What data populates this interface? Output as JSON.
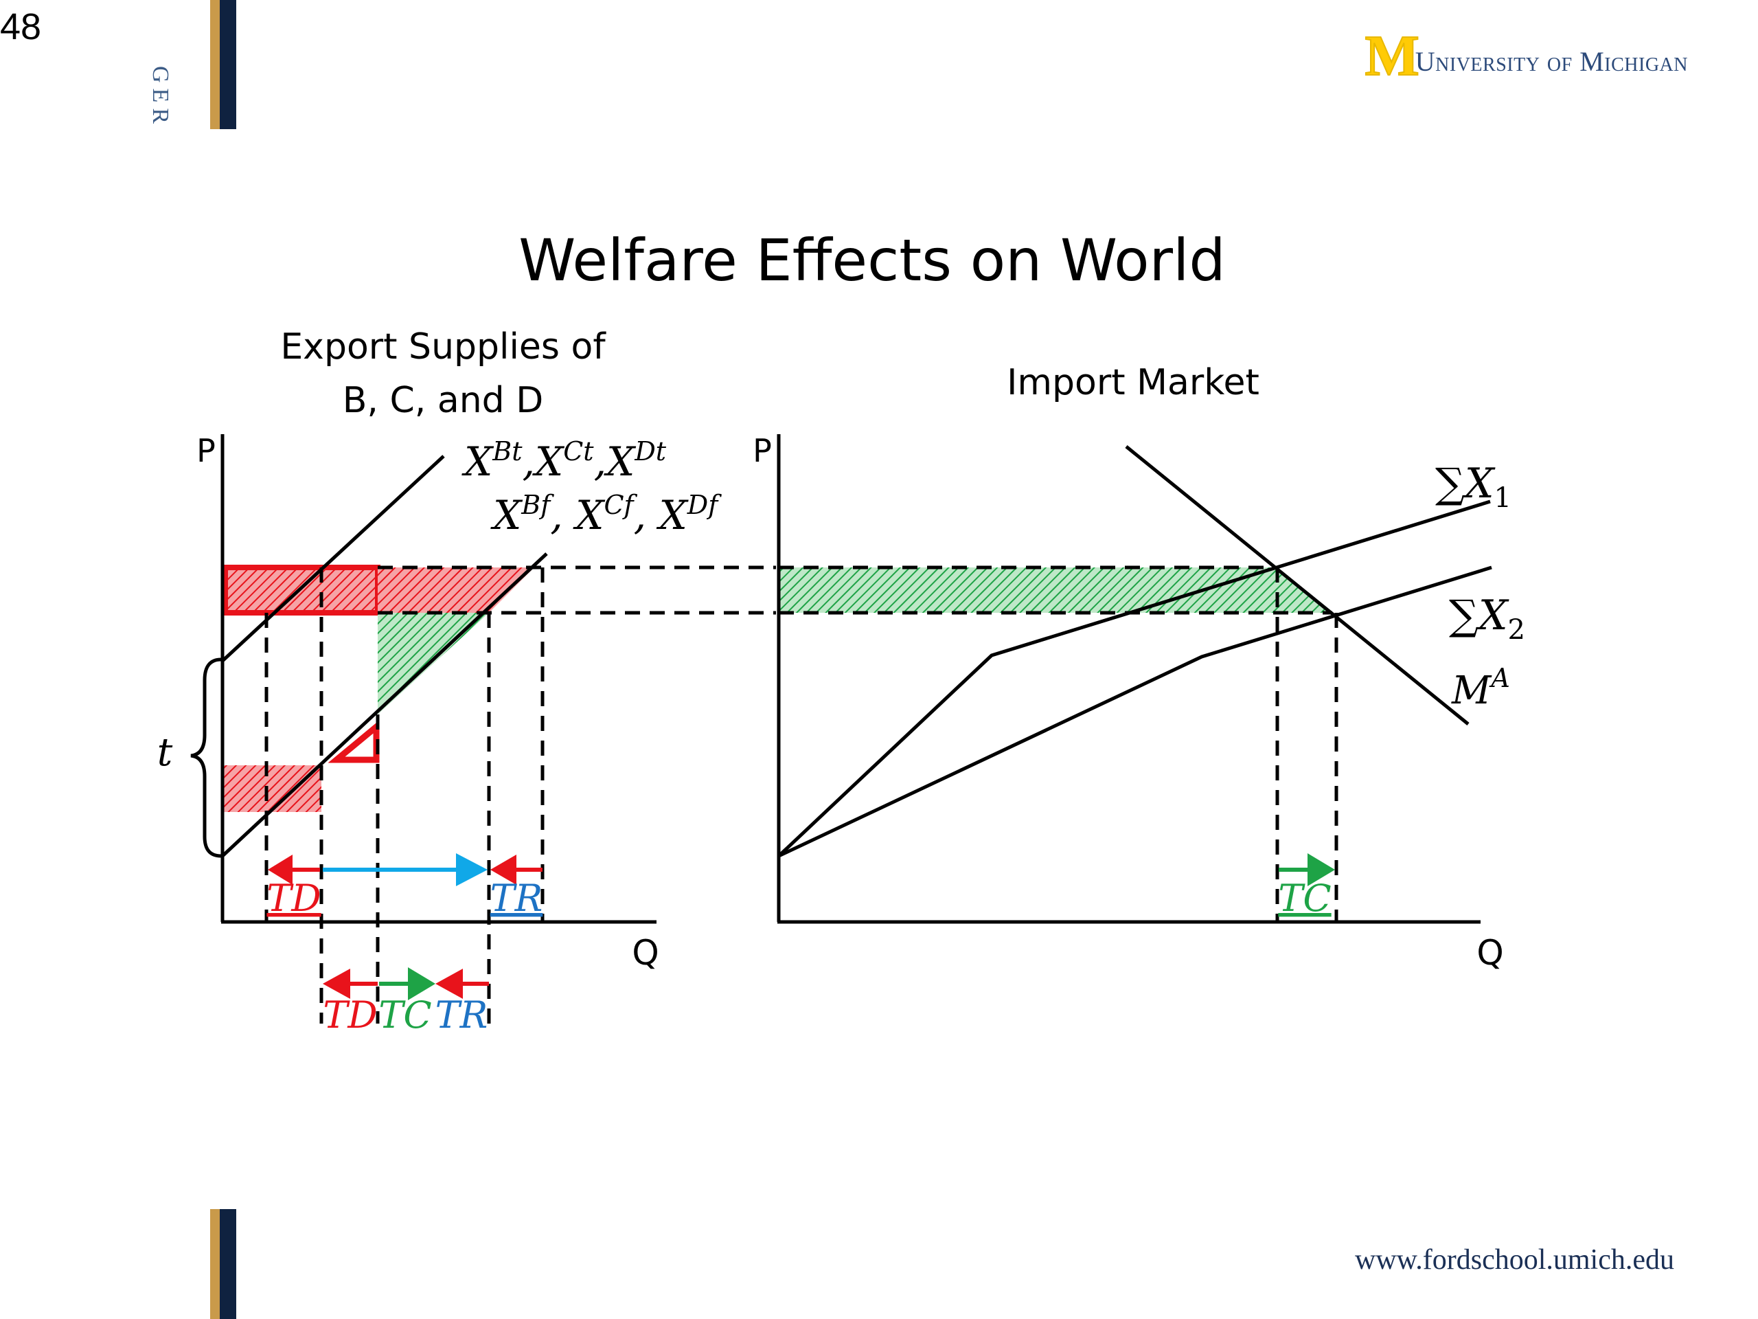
{
  "slide": {
    "number": "48",
    "side_text": "GER",
    "title": "Welfare Effects on World",
    "footer_url": "www.fordschool.umich.edu"
  },
  "logo": {
    "mark": "M",
    "text": "University of Michigan"
  },
  "left_panel": {
    "title_line1": "Export Supplies of",
    "title_line2": "B, C, and D",
    "y_axis": "P",
    "x_axis": "Q",
    "curve_tariff_label": "XBt, XCt, XDt",
    "curve_free_label": "XBf, XCf, XDf",
    "tariff_label": "t",
    "arrow_labels": {
      "td": "TD",
      "tr": "TR",
      "tc": "TC"
    }
  },
  "right_panel": {
    "title": "Import Market",
    "y_axis": "P",
    "x_axis": "Q",
    "curve_sum1": "∑X1",
    "curve_sum2": "∑X2",
    "curve_import": "MA",
    "arrow_label_tc": "TC"
  },
  "colors": {
    "red": "#e8131b",
    "green": "#1ea346",
    "blue": "#10a8e8",
    "label_blue": "#1d72c4",
    "gold": "#ffcb05",
    "navy": "#0f2240"
  }
}
